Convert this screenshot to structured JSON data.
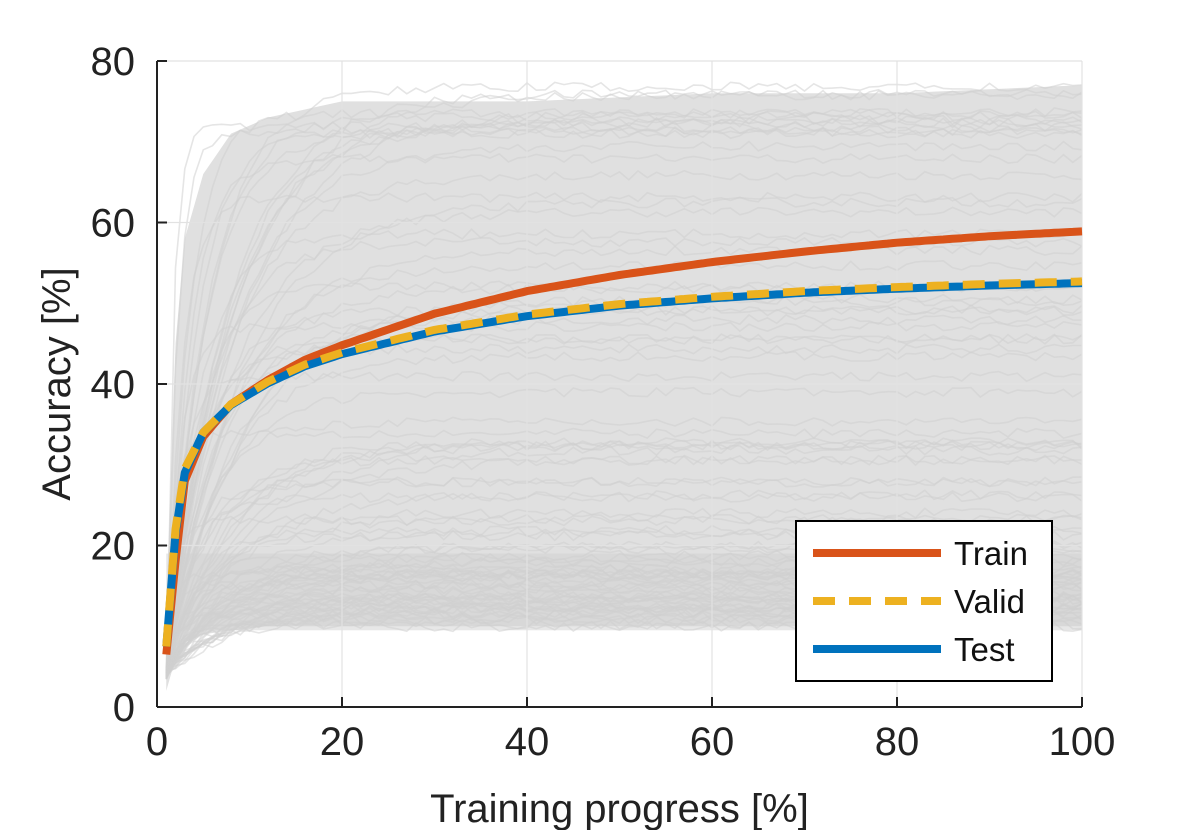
{
  "chart_data": {
    "type": "line",
    "title": "",
    "xlabel": "Training progress [%]",
    "ylabel": "Accuracy [%]",
    "xlim": [
      0,
      100
    ],
    "ylim": [
      0,
      80
    ],
    "xticks": [
      0,
      20,
      40,
      60,
      80,
      100
    ],
    "yticks": [
      0,
      20,
      40,
      60,
      80
    ],
    "xtick_labels": [
      "0",
      "20",
      "40",
      "60",
      "80",
      "100"
    ],
    "ytick_labels": [
      "0",
      "20",
      "40",
      "60",
      "80"
    ],
    "grid": true,
    "legend_position": "bottom-right",
    "background_runs": {
      "description_color": "#d0d0d0",
      "band_x": [
        1,
        2,
        3,
        5,
        8,
        12,
        20,
        40,
        60,
        80,
        100
      ],
      "band_upper": [
        12,
        45,
        58,
        66,
        71,
        73,
        75,
        75,
        76,
        76,
        77
      ],
      "band_lower": [
        2,
        6,
        8,
        9,
        9.5,
        10,
        10,
        10,
        10,
        10,
        10
      ],
      "dense_low_band_y": [
        9.5,
        19
      ]
    },
    "series": [
      {
        "name": "Train",
        "color": "#d95319",
        "style": "solid",
        "x": [
          1,
          2,
          3,
          5,
          8,
          12,
          16,
          20,
          30,
          40,
          50,
          60,
          70,
          80,
          90,
          100
        ],
        "y": [
          6.5,
          18,
          28,
          33.5,
          37.5,
          40.5,
          43,
          44.8,
          48.7,
          51.5,
          53.5,
          55.1,
          56.4,
          57.5,
          58.3,
          58.9
        ]
      },
      {
        "name": "Valid",
        "color": "#edb120",
        "style": "dashed",
        "x": [
          1,
          2,
          3,
          5,
          8,
          12,
          16,
          20,
          30,
          40,
          50,
          60,
          70,
          80,
          90,
          100
        ],
        "y": [
          7.5,
          22,
          29.5,
          34,
          37.5,
          40.3,
          42.4,
          43.9,
          46.7,
          48.6,
          49.9,
          50.8,
          51.5,
          52.0,
          52.4,
          52.7
        ]
      },
      {
        "name": "Test",
        "color": "#0072bd",
        "style": "solid",
        "x": [
          1,
          2,
          3,
          5,
          8,
          12,
          16,
          20,
          30,
          40,
          50,
          60,
          70,
          80,
          90,
          100
        ],
        "y": [
          7.5,
          21.5,
          29,
          34,
          37.4,
          40.1,
          42.2,
          43.7,
          46.5,
          48.4,
          49.7,
          50.6,
          51.3,
          51.8,
          52.2,
          52.5
        ]
      }
    ]
  }
}
